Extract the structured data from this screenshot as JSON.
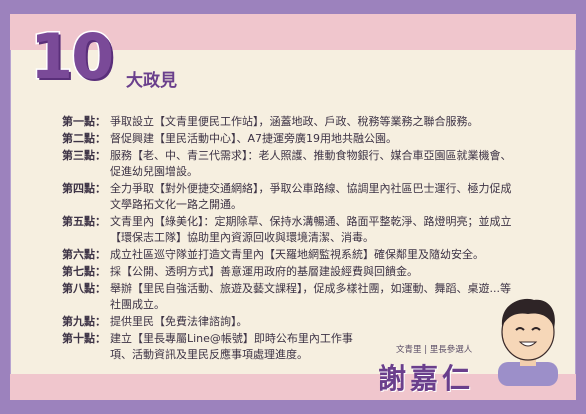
{
  "title": {
    "number": "10",
    "subtitle": "大政見"
  },
  "items": [
    {
      "point": "第一點：",
      "text": "爭取設立【文青里便民工作站】，涵蓋地政、戶政、稅務等業務之聯合服務。"
    },
    {
      "point": "第二點：",
      "text": "督促興建【里民活動中心】、A7捷運旁廣19用地共融公園。"
    },
    {
      "point": "第三點：",
      "text": "服務【老、中、青三代需求】：老人照護、推動食物銀行、媒合車亞園區就業機會、促進幼兒園增設。"
    },
    {
      "point": "第四點：",
      "text": "全力爭取【對外便捷交通網絡】，爭取公車路線、協調里內社區巴士運行、極力促成文學路拓文化一路之開通。"
    },
    {
      "point": "第五點：",
      "text": "文青里內【綠美化】：定期除草、保持水溝暢通、路面平整乾淨、路燈明亮；並成立【環保志工隊】協助里內資源回收與環境清潔、消毒。"
    },
    {
      "point": "第六點：",
      "text": "成立社區巡守隊並打造文青里內【天羅地網監視系統】確保鄰里及隨幼安全。"
    },
    {
      "point": "第七點：",
      "text": "採【公開、透明方式】善意運用政府的基層建設經費與回饋金。"
    },
    {
      "point": "第八點：",
      "text": "舉辦【里民自強活動、旅遊及藝文課程】，促成多樣社團，如運動、舞蹈、桌遊...等社團成立。"
    },
    {
      "point": "第九點：",
      "text": "提供里民【免費法律諮詢】。"
    },
    {
      "point": "第十點：",
      "text": "建立【里長專屬Line@帳號】即時公布里內工作事項、活動資訊及里民反應事項處理進度。"
    }
  ],
  "candidate": {
    "role": "文青里 | 里長參選人",
    "name": "謝嘉仁"
  },
  "colors": {
    "background": "#9c82bd",
    "card": "#f6efe0",
    "band": "#f0c6cd",
    "accent": "#6a3f8c"
  }
}
